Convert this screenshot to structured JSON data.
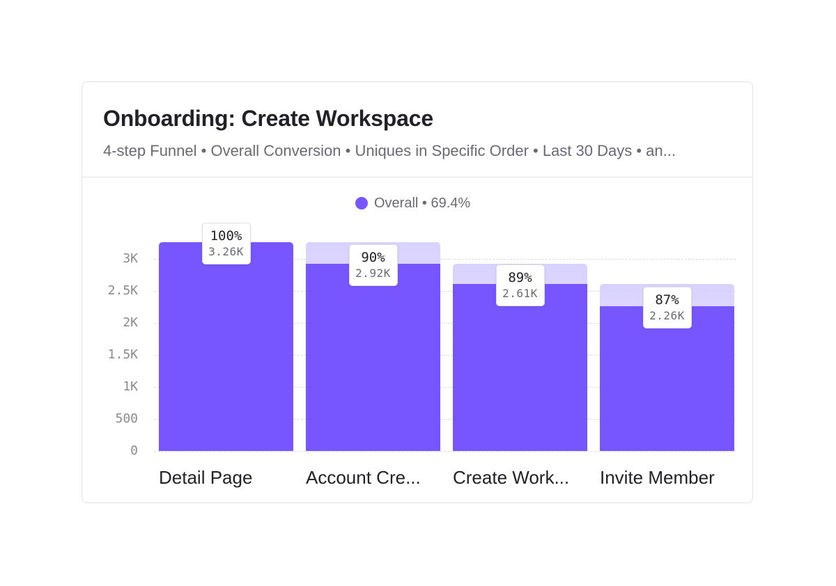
{
  "card": {
    "title": "Onboarding: Create Workspace",
    "subtitle": "4-step Funnel • Overall Conversion • Uniques in Specific Order • Last 30 Days • an..."
  },
  "legend": {
    "icon": "circle-dot-icon",
    "label": "Overall • 69.4%",
    "color": "#7856ff"
  },
  "colors": {
    "bar": "#7856ff",
    "ghost_top": "#d8d2ff",
    "ghost_bottom": "#f4f2ff"
  },
  "y_axis": {
    "ticks": [
      "0",
      "500",
      "1K",
      "1.5K",
      "2K",
      "2.5K",
      "3K"
    ]
  },
  "steps": [
    {
      "label": "Detail Page",
      "percent": "100%",
      "value": "3.26K"
    },
    {
      "label": "Account Cre...",
      "percent": "90%",
      "value": "2.92K"
    },
    {
      "label": "Create Work...",
      "percent": "89%",
      "value": "2.61K"
    },
    {
      "label": "Invite Member",
      "percent": "87%",
      "value": "2.26K"
    }
  ],
  "chart_data": {
    "type": "bar",
    "title": "Onboarding: Create Workspace",
    "subtitle": "4-step Funnel • Overall Conversion • Uniques in Specific Order • Last 30 Days • an...",
    "categories": [
      "Detail Page",
      "Account Cre...",
      "Create Work...",
      "Invite Member"
    ],
    "series": [
      {
        "name": "Overall",
        "values": [
          3260,
          2920,
          2610,
          2260
        ],
        "step_conversion_pct": [
          100,
          90,
          89,
          87
        ],
        "color": "#7856ff"
      }
    ],
    "dropoff_ghost_values": [
      null,
      3260,
      2920,
      2610
    ],
    "legend": [
      {
        "label": "Overall • 69.4%",
        "color": "#7856ff"
      }
    ],
    "overall_conversion_pct": 69.4,
    "xlabel": "",
    "ylabel": "",
    "yticks": [
      0,
      500,
      1000,
      1500,
      2000,
      2500,
      3000
    ],
    "ytick_labels": [
      "0",
      "500",
      "1K",
      "1.5K",
      "2K",
      "2.5K",
      "3K"
    ],
    "ylim": [
      0,
      3260
    ],
    "grid": "horizontal dashed",
    "legend_position": "top-center"
  }
}
